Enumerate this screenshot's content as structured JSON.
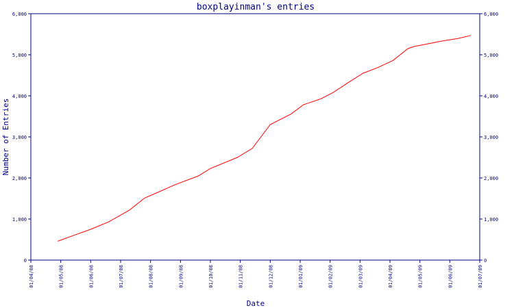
{
  "chart_data": {
    "type": "line",
    "title": "boxplayinman's entries",
    "xlabel": "Date",
    "ylabel": "Number of Entries",
    "x_ticks": [
      "01/04/08",
      "01/05/08",
      "01/06/08",
      "01/07/08",
      "01/08/08",
      "01/09/08",
      "01/10/08",
      "01/11/08",
      "01/12/08",
      "01/01/09",
      "01/02/09",
      "01/03/09",
      "01/04/09",
      "01/05/09",
      "01/06/09",
      "01/07/09"
    ],
    "y_ticks": [
      "0",
      "1,000",
      "2,000",
      "3,000",
      "4,000",
      "5,000",
      "6,000"
    ],
    "y_ticks_right": [
      "0",
      "1,000",
      "2,000",
      "3,000",
      "4,000",
      "5,000",
      "6,000"
    ],
    "ylim": [
      0,
      6000
    ],
    "grid": false,
    "line_color": "#ff0000",
    "axis_color": "#000080",
    "series": [
      {
        "x": [
          0.9,
          1.5,
          2.0,
          2.6,
          3.3,
          3.8,
          4.4,
          4.8,
          5.6,
          6.0,
          6.9,
          7.4,
          8.0,
          8.7,
          9.1,
          9.7,
          10.1,
          10.6,
          11.1,
          11.6,
          12.1,
          12.6,
          12.8,
          13.3,
          13.7,
          14.3,
          14.7
        ],
        "y": [
          460,
          620,
          750,
          930,
          1220,
          1510,
          1700,
          1830,
          2050,
          2230,
          2500,
          2720,
          3300,
          3560,
          3780,
          3930,
          4080,
          4320,
          4550,
          4690,
          4860,
          5150,
          5200,
          5270,
          5330,
          5400,
          5470
        ]
      }
    ]
  }
}
